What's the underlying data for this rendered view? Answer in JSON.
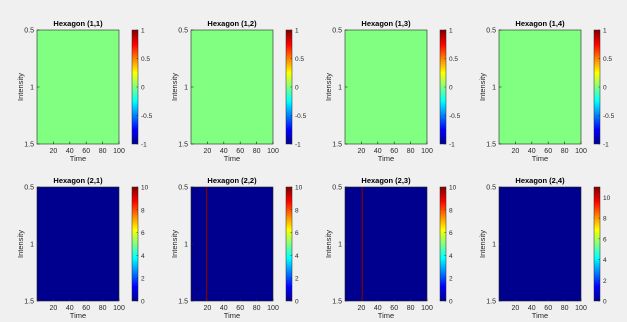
{
  "figure": {
    "background": "#f0f0f0"
  },
  "chart_data": [
    {
      "type": "heatmap",
      "title": "Hexagon (1,1)",
      "xlabel": "Time",
      "ylabel": "Intensity",
      "xlim": [
        0,
        100
      ],
      "xticks": [
        20,
        40,
        60,
        80,
        100
      ],
      "xtick_labels": [
        "20",
        "40",
        "60",
        "80",
        "100"
      ],
      "ylim": [
        0.5,
        1.5
      ],
      "yticks": [
        0.5,
        1,
        1.5
      ],
      "ytick_labels": [
        "0.5",
        "1",
        "1.5"
      ],
      "y_reversed": true,
      "fill_value": 0,
      "value_range": [
        -1,
        1
      ],
      "colorbar": {
        "ticks": [
          -1,
          -0.5,
          0,
          0.5,
          1
        ],
        "tick_labels": [
          "-1",
          "-0.5",
          "0",
          "0.5",
          "1"
        ]
      },
      "lines": []
    },
    {
      "type": "heatmap",
      "title": "Hexagon (1,2)",
      "xlabel": "Time",
      "ylabel": "Intensity",
      "xlim": [
        0,
        100
      ],
      "xticks": [
        20,
        40,
        60,
        80,
        100
      ],
      "xtick_labels": [
        "20",
        "40",
        "60",
        "80",
        "100"
      ],
      "ylim": [
        0.5,
        1.5
      ],
      "yticks": [
        0.5,
        1,
        1.5
      ],
      "ytick_labels": [
        "0.5",
        "1",
        "1.5"
      ],
      "y_reversed": true,
      "fill_value": 0,
      "value_range": [
        -1,
        1
      ],
      "colorbar": {
        "ticks": [
          -1,
          -0.5,
          0,
          0.5,
          1
        ],
        "tick_labels": [
          "-1",
          "-0.5",
          "0",
          "0.5",
          "1"
        ]
      },
      "lines": []
    },
    {
      "type": "heatmap",
      "title": "Hexagon (1,3)",
      "xlabel": "Time",
      "ylabel": "Intensity",
      "xlim": [
        0,
        100
      ],
      "xticks": [
        20,
        40,
        60,
        80,
        100
      ],
      "xtick_labels": [
        "20",
        "40",
        "60",
        "80",
        "100"
      ],
      "ylim": [
        0.5,
        1.5
      ],
      "yticks": [
        0.5,
        1,
        1.5
      ],
      "ytick_labels": [
        "0.5",
        "1",
        "1.5"
      ],
      "y_reversed": true,
      "fill_value": 0,
      "value_range": [
        -1,
        1
      ],
      "colorbar": {
        "ticks": [
          -1,
          -0.5,
          0,
          0.5,
          1
        ],
        "tick_labels": [
          "-1",
          "-0.5",
          "0",
          "0.5",
          "1"
        ]
      },
      "lines": []
    },
    {
      "type": "heatmap",
      "title": "Hexagon (1,4)",
      "xlabel": "Time",
      "ylabel": "Intensity",
      "xlim": [
        0,
        100
      ],
      "xticks": [
        20,
        40,
        60,
        80,
        100
      ],
      "xtick_labels": [
        "20",
        "40",
        "60",
        "80",
        "100"
      ],
      "ylim": [
        0.5,
        1.5
      ],
      "yticks": [
        0.5,
        1,
        1.5
      ],
      "ytick_labels": [
        "0.5",
        "1",
        "1.5"
      ],
      "y_reversed": true,
      "fill_value": 0,
      "value_range": [
        -1,
        1
      ],
      "colorbar": {
        "ticks": [
          -1,
          -0.5,
          0,
          0.5,
          1
        ],
        "tick_labels": [
          "-1",
          "-0.5",
          "0",
          "0.5",
          "1"
        ]
      },
      "lines": []
    },
    {
      "type": "heatmap",
      "title": "Hexagon (2,1)",
      "xlabel": "Time",
      "ylabel": "Intensity",
      "xlim": [
        0,
        100
      ],
      "xticks": [
        20,
        40,
        60,
        80,
        100
      ],
      "xtick_labels": [
        "20",
        "40",
        "60",
        "80",
        "100"
      ],
      "ylim": [
        0.5,
        1.5
      ],
      "yticks": [
        0.5,
        1,
        1.5
      ],
      "ytick_labels": [
        "0.5",
        "1",
        "1.5"
      ],
      "y_reversed": true,
      "fill_value": 0,
      "value_range": [
        0,
        10
      ],
      "colorbar": {
        "ticks": [
          0,
          2,
          4,
          6,
          8,
          10
        ],
        "tick_labels": [
          "0",
          "2",
          "4",
          "6",
          "8",
          "10"
        ]
      },
      "lines": []
    },
    {
      "type": "heatmap",
      "title": "Hexagon (2,2)",
      "xlabel": "Time",
      "ylabel": "Intensity",
      "xlim": [
        0,
        100
      ],
      "xticks": [
        20,
        40,
        60,
        80,
        100
      ],
      "xtick_labels": [
        "20",
        "40",
        "60",
        "80",
        "100"
      ],
      "ylim": [
        0.5,
        1.5
      ],
      "yticks": [
        0.5,
        1,
        1.5
      ],
      "ytick_labels": [
        "0.5",
        "1",
        "1.5"
      ],
      "y_reversed": true,
      "fill_value": 0,
      "value_range": [
        0,
        10
      ],
      "colorbar": {
        "ticks": [
          0,
          2,
          4,
          6,
          8,
          10
        ],
        "tick_labels": [
          "0",
          "2",
          "4",
          "6",
          "8",
          "10"
        ]
      },
      "lines": [
        {
          "time": 19,
          "value": 10
        }
      ]
    },
    {
      "type": "heatmap",
      "title": "Hexagon (2,3)",
      "xlabel": "Time",
      "ylabel": "Intensity",
      "xlim": [
        0,
        100
      ],
      "xticks": [
        20,
        40,
        60,
        80,
        100
      ],
      "xtick_labels": [
        "20",
        "40",
        "60",
        "80",
        "100"
      ],
      "ylim": [
        0.5,
        1.5
      ],
      "yticks": [
        0.5,
        1,
        1.5
      ],
      "ytick_labels": [
        "0.5",
        "1",
        "1.5"
      ],
      "y_reversed": true,
      "fill_value": 0,
      "value_range": [
        0,
        10
      ],
      "colorbar": {
        "ticks": [
          0,
          2,
          4,
          6,
          8,
          10
        ],
        "tick_labels": [
          "0",
          "2",
          "4",
          "6",
          "8",
          "10"
        ]
      },
      "lines": [
        {
          "time": 21,
          "value": 10
        }
      ]
    },
    {
      "type": "heatmap",
      "title": "Hexagon (2,4)",
      "xlabel": "Time",
      "ylabel": "Intensity",
      "xlim": [
        0,
        100
      ],
      "xticks": [
        20,
        40,
        60,
        80,
        100
      ],
      "xtick_labels": [
        "20",
        "40",
        "60",
        "80",
        "100"
      ],
      "ylim": [
        0.5,
        1.5
      ],
      "yticks": [
        0.5,
        1,
        1.5
      ],
      "ytick_labels": [
        "0.5",
        "1",
        "1.5"
      ],
      "y_reversed": true,
      "fill_value": 0,
      "value_range": [
        0,
        11
      ],
      "colorbar": {
        "ticks": [
          0,
          2,
          4,
          6,
          8,
          10
        ],
        "tick_labels": [
          "0",
          "2",
          "4",
          "6",
          "8",
          "10"
        ]
      },
      "lines": []
    }
  ]
}
